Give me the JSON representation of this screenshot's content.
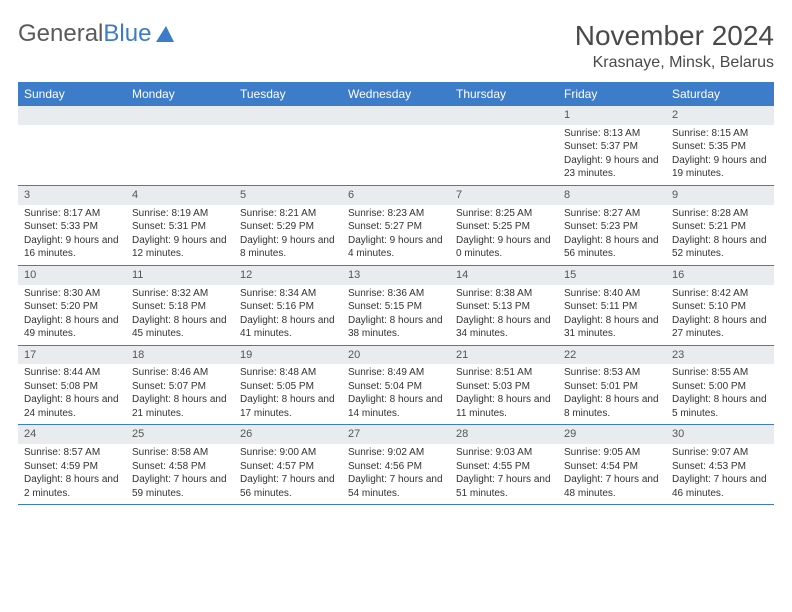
{
  "brand": {
    "part1": "General",
    "part2": "Blue"
  },
  "title": "November 2024",
  "location": "Krasnaye, Minsk, Belarus",
  "colors": {
    "header_bg": "#3d7cc9",
    "header_text": "#ffffff",
    "daynum_bg": "#e9ecef",
    "border": "#3d7cc9",
    "text": "#333333"
  },
  "dayHeaders": [
    "Sunday",
    "Monday",
    "Tuesday",
    "Wednesday",
    "Thursday",
    "Friday",
    "Saturday"
  ],
  "weeks": [
    [
      null,
      null,
      null,
      null,
      null,
      {
        "n": "1",
        "sr": "8:13 AM",
        "ss": "5:37 PM",
        "dl": "9 hours and 23 minutes."
      },
      {
        "n": "2",
        "sr": "8:15 AM",
        "ss": "5:35 PM",
        "dl": "9 hours and 19 minutes."
      }
    ],
    [
      {
        "n": "3",
        "sr": "8:17 AM",
        "ss": "5:33 PM",
        "dl": "9 hours and 16 minutes."
      },
      {
        "n": "4",
        "sr": "8:19 AM",
        "ss": "5:31 PM",
        "dl": "9 hours and 12 minutes."
      },
      {
        "n": "5",
        "sr": "8:21 AM",
        "ss": "5:29 PM",
        "dl": "9 hours and 8 minutes."
      },
      {
        "n": "6",
        "sr": "8:23 AM",
        "ss": "5:27 PM",
        "dl": "9 hours and 4 minutes."
      },
      {
        "n": "7",
        "sr": "8:25 AM",
        "ss": "5:25 PM",
        "dl": "9 hours and 0 minutes."
      },
      {
        "n": "8",
        "sr": "8:27 AM",
        "ss": "5:23 PM",
        "dl": "8 hours and 56 minutes."
      },
      {
        "n": "9",
        "sr": "8:28 AM",
        "ss": "5:21 PM",
        "dl": "8 hours and 52 minutes."
      }
    ],
    [
      {
        "n": "10",
        "sr": "8:30 AM",
        "ss": "5:20 PM",
        "dl": "8 hours and 49 minutes."
      },
      {
        "n": "11",
        "sr": "8:32 AM",
        "ss": "5:18 PM",
        "dl": "8 hours and 45 minutes."
      },
      {
        "n": "12",
        "sr": "8:34 AM",
        "ss": "5:16 PM",
        "dl": "8 hours and 41 minutes."
      },
      {
        "n": "13",
        "sr": "8:36 AM",
        "ss": "5:15 PM",
        "dl": "8 hours and 38 minutes."
      },
      {
        "n": "14",
        "sr": "8:38 AM",
        "ss": "5:13 PM",
        "dl": "8 hours and 34 minutes."
      },
      {
        "n": "15",
        "sr": "8:40 AM",
        "ss": "5:11 PM",
        "dl": "8 hours and 31 minutes."
      },
      {
        "n": "16",
        "sr": "8:42 AM",
        "ss": "5:10 PM",
        "dl": "8 hours and 27 minutes."
      }
    ],
    [
      {
        "n": "17",
        "sr": "8:44 AM",
        "ss": "5:08 PM",
        "dl": "8 hours and 24 minutes."
      },
      {
        "n": "18",
        "sr": "8:46 AM",
        "ss": "5:07 PM",
        "dl": "8 hours and 21 minutes."
      },
      {
        "n": "19",
        "sr": "8:48 AM",
        "ss": "5:05 PM",
        "dl": "8 hours and 17 minutes."
      },
      {
        "n": "20",
        "sr": "8:49 AM",
        "ss": "5:04 PM",
        "dl": "8 hours and 14 minutes."
      },
      {
        "n": "21",
        "sr": "8:51 AM",
        "ss": "5:03 PM",
        "dl": "8 hours and 11 minutes."
      },
      {
        "n": "22",
        "sr": "8:53 AM",
        "ss": "5:01 PM",
        "dl": "8 hours and 8 minutes."
      },
      {
        "n": "23",
        "sr": "8:55 AM",
        "ss": "5:00 PM",
        "dl": "8 hours and 5 minutes."
      }
    ],
    [
      {
        "n": "24",
        "sr": "8:57 AM",
        "ss": "4:59 PM",
        "dl": "8 hours and 2 minutes."
      },
      {
        "n": "25",
        "sr": "8:58 AM",
        "ss": "4:58 PM",
        "dl": "7 hours and 59 minutes."
      },
      {
        "n": "26",
        "sr": "9:00 AM",
        "ss": "4:57 PM",
        "dl": "7 hours and 56 minutes."
      },
      {
        "n": "27",
        "sr": "9:02 AM",
        "ss": "4:56 PM",
        "dl": "7 hours and 54 minutes."
      },
      {
        "n": "28",
        "sr": "9:03 AM",
        "ss": "4:55 PM",
        "dl": "7 hours and 51 minutes."
      },
      {
        "n": "29",
        "sr": "9:05 AM",
        "ss": "4:54 PM",
        "dl": "7 hours and 48 minutes."
      },
      {
        "n": "30",
        "sr": "9:07 AM",
        "ss": "4:53 PM",
        "dl": "7 hours and 46 minutes."
      }
    ]
  ],
  "labels": {
    "sunrise": "Sunrise:",
    "sunset": "Sunset:",
    "daylight": "Daylight:"
  }
}
